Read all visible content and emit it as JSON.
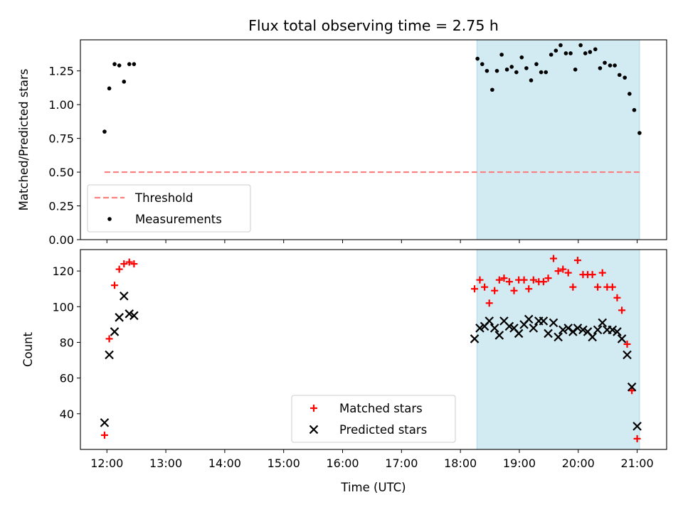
{
  "figure": {
    "title": "Flux total observing time = 2.75 h"
  },
  "chart_data": [
    {
      "type": "scatter",
      "ylabel": "Matched/Predicted stars",
      "xlabel": "",
      "xlim": [
        11.55,
        21.5
      ],
      "ylim": [
        0.0,
        1.48
      ],
      "yticks": [
        0.0,
        0.25,
        0.5,
        0.75,
        1.0,
        1.25
      ],
      "ytick_labels": [
        "0.00",
        "0.25",
        "0.50",
        "0.75",
        "1.00",
        "1.25"
      ],
      "xticks": [
        12,
        13,
        14,
        15,
        16,
        17,
        18,
        19,
        20,
        21
      ],
      "highlight": {
        "x0": 18.28,
        "x1": 21.04,
        "color": "#add8e6"
      },
      "threshold": {
        "name": "Threshold",
        "y": 0.5,
        "x0": 11.96,
        "x1": 21.04,
        "color": "#ff7f7f"
      },
      "legend": {
        "placement": "lower-left",
        "entries": [
          "Threshold",
          "Measurements"
        ]
      },
      "series": [
        {
          "name": "Measurements",
          "marker": "dot",
          "color": "#000000",
          "x": [
            11.96,
            12.04,
            12.13,
            12.21,
            12.29,
            12.38,
            12.46,
            18.29,
            18.37,
            18.45,
            18.54,
            18.62,
            18.7,
            18.79,
            18.87,
            18.95,
            19.04,
            19.12,
            19.2,
            19.29,
            19.37,
            19.45,
            19.54,
            19.62,
            19.7,
            19.79,
            19.87,
            19.95,
            20.04,
            20.12,
            20.2,
            20.29,
            20.37,
            20.45,
            20.54,
            20.62,
            20.7,
            20.79,
            20.87,
            20.95,
            21.04
          ],
          "y": [
            0.8,
            1.12,
            1.3,
            1.29,
            1.17,
            1.3,
            1.3,
            1.34,
            1.3,
            1.25,
            1.11,
            1.25,
            1.37,
            1.26,
            1.28,
            1.24,
            1.35,
            1.27,
            1.18,
            1.3,
            1.24,
            1.24,
            1.37,
            1.4,
            1.44,
            1.38,
            1.38,
            1.26,
            1.44,
            1.38,
            1.39,
            1.41,
            1.27,
            1.31,
            1.29,
            1.29,
            1.22,
            1.2,
            1.08,
            0.96,
            0.79
          ]
        }
      ]
    },
    {
      "type": "scatter",
      "ylabel": "Count",
      "xlabel": "Time (UTC)",
      "xlim": [
        11.55,
        21.5
      ],
      "ylim": [
        20,
        132
      ],
      "yticks": [
        40,
        60,
        80,
        100,
        120
      ],
      "ytick_labels": [
        "40",
        "60",
        "80",
        "100",
        "120"
      ],
      "xticks": [
        12,
        13,
        14,
        15,
        16,
        17,
        18,
        19,
        20,
        21
      ],
      "xtick_labels": [
        "12:00",
        "13:00",
        "14:00",
        "15:00",
        "16:00",
        "17:00",
        "18:00",
        "19:00",
        "20:00",
        "21:00"
      ],
      "highlight": {
        "x0": 18.28,
        "x1": 21.04,
        "color": "#add8e6"
      },
      "legend": {
        "placement": "lower-center",
        "entries": [
          "Matched stars",
          "Predicted stars"
        ]
      },
      "series": [
        {
          "name": "Matched stars",
          "marker": "plus",
          "color": "#ff0000",
          "x": [
            11.96,
            12.04,
            12.13,
            12.21,
            12.29,
            12.38,
            12.46,
            18.24,
            18.33,
            18.41,
            18.49,
            18.58,
            18.66,
            18.74,
            18.83,
            18.91,
            18.99,
            19.08,
            19.16,
            19.24,
            19.33,
            19.41,
            19.49,
            19.58,
            19.66,
            19.74,
            19.83,
            19.91,
            19.99,
            20.08,
            20.16,
            20.24,
            20.33,
            20.41,
            20.49,
            20.58,
            20.66,
            20.74,
            20.83,
            20.91,
            21.0
          ],
          "y": [
            28,
            82,
            112,
            121,
            124,
            125,
            124,
            110,
            115,
            111,
            102,
            109,
            115,
            116,
            114,
            109,
            115,
            115,
            110,
            115,
            114,
            114,
            116,
            127,
            120,
            121,
            119,
            111,
            126,
            118,
            118,
            118,
            111,
            119,
            111,
            111,
            105,
            98,
            79,
            53,
            26
          ]
        },
        {
          "name": "Predicted stars",
          "marker": "x",
          "color": "#000000",
          "x": [
            11.96,
            12.04,
            12.13,
            12.21,
            12.29,
            12.38,
            12.46,
            18.24,
            18.33,
            18.41,
            18.49,
            18.58,
            18.66,
            18.74,
            18.83,
            18.91,
            18.99,
            19.08,
            19.16,
            19.24,
            19.33,
            19.41,
            19.49,
            19.58,
            19.66,
            19.74,
            19.83,
            19.91,
            19.99,
            20.08,
            20.16,
            20.24,
            20.33,
            20.41,
            20.49,
            20.58,
            20.66,
            20.74,
            20.83,
            20.91,
            21.0
          ],
          "y": [
            35,
            73,
            86,
            94,
            106,
            96,
            95,
            82,
            88,
            89,
            92,
            88,
            84,
            92,
            89,
            88,
            85,
            90,
            93,
            88,
            92,
            92,
            85,
            91,
            83,
            87,
            88,
            86,
            88,
            87,
            86,
            83,
            87,
            91,
            87,
            87,
            86,
            82,
            73,
            55,
            33
          ]
        }
      ]
    }
  ]
}
